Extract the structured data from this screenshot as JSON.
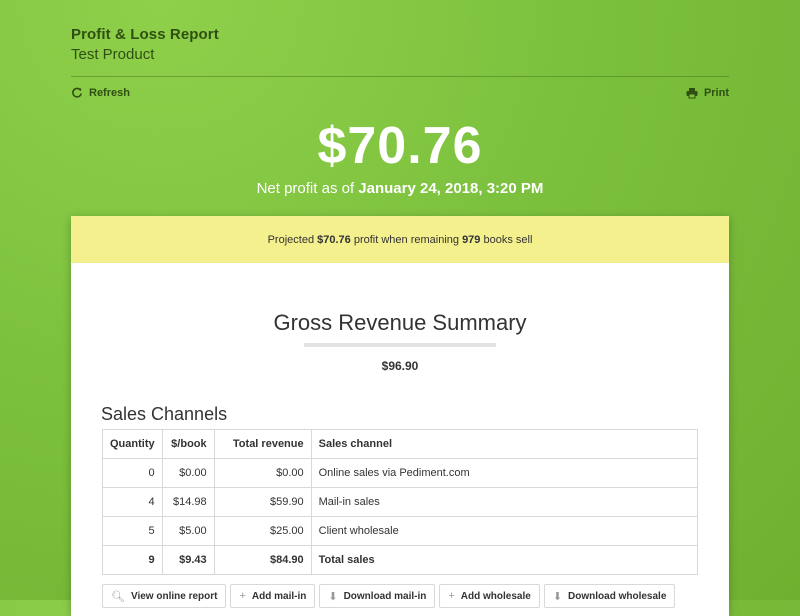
{
  "header": {
    "title": "Profit & Loss Report",
    "subtitle": "Test Product"
  },
  "toolbar": {
    "refresh_label": "Refresh",
    "print_label": "Print"
  },
  "hero": {
    "amount": "$70.76",
    "asof_prefix": "Net profit as of ",
    "asof_date": "January 24, 2018, 3:20 PM"
  },
  "banner": {
    "prefix": "Projected ",
    "amount": "$70.76",
    "middle": " profit when remaining ",
    "count": "979",
    "suffix": " books sell"
  },
  "gross": {
    "title": "Gross Revenue Summary",
    "value": "$96.90"
  },
  "channels": {
    "title": "Sales Channels",
    "headers": [
      "Quantity",
      "$/book",
      "Total revenue",
      "Sales channel"
    ],
    "rows": [
      [
        "0",
        "$0.00",
        "$0.00",
        "Online sales via Pediment.com"
      ],
      [
        "4",
        "$14.98",
        "$59.90",
        "Mail-in sales"
      ],
      [
        "5",
        "$5.00",
        "$25.00",
        "Client wholesale"
      ]
    ],
    "total": [
      "9",
      "$9.43",
      "$84.90",
      "Total sales"
    ]
  },
  "actions": [
    {
      "icon": "search-icon",
      "label": "View online report"
    },
    {
      "icon": "plus-icon",
      "label": "Add mail-in"
    },
    {
      "icon": "download-icon",
      "label": "Download mail-in"
    },
    {
      "icon": "plus-icon",
      "label": "Add wholesale"
    },
    {
      "icon": "download-icon",
      "label": "Download wholesale"
    }
  ]
}
